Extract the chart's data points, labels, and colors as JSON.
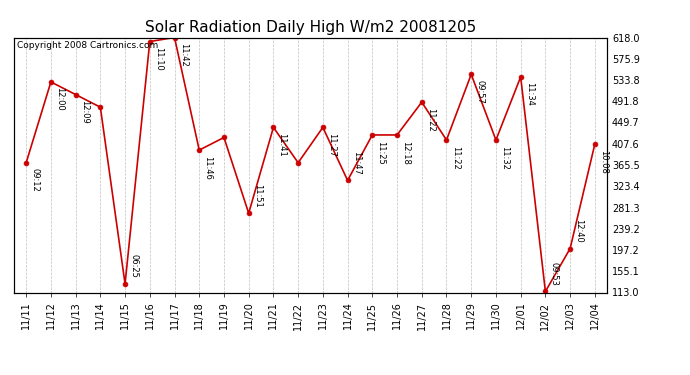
{
  "title": "Solar Radiation Daily High W/m2 20081205",
  "copyright": "Copyright 2008 Cartronics.com",
  "x_labels": [
    "11/11",
    "11/12",
    "11/13",
    "11/14",
    "11/15",
    "11/16",
    "11/17",
    "11/18",
    "11/19",
    "11/20",
    "11/21",
    "11/22",
    "11/23",
    "11/24",
    "11/25",
    "11/26",
    "11/27",
    "11/28",
    "11/29",
    "11/30",
    "12/01",
    "12/02",
    "12/03",
    "12/04"
  ],
  "y_vals": [
    370,
    530,
    505,
    480,
    130,
    610,
    618,
    395,
    420,
    270,
    440,
    370,
    440,
    335,
    425,
    425,
    490,
    415,
    545,
    415,
    540,
    115,
    200,
    407
  ],
  "time_labs": [
    "09:12",
    "12:00",
    "12:09",
    "",
    "06:25",
    "11:10",
    "11:42",
    "11:46",
    "",
    "11:51",
    "11:41",
    "",
    "11:27",
    "11:47",
    "11:25",
    "12:18",
    "11:22",
    "11:22",
    "09:57",
    "11:32",
    "11:34",
    "09:53",
    "12:40",
    "10:08"
  ],
  "y_min": 113.0,
  "y_max": 618.0,
  "y_ticks": [
    113.0,
    155.1,
    197.2,
    239.2,
    281.3,
    323.4,
    365.5,
    407.6,
    449.7,
    491.8,
    533.8,
    575.9,
    618.0
  ],
  "line_color": "#cc0000",
  "dot_color": "#cc0000",
  "bg_color": "#ffffff",
  "grid_color": "#b0b0b0",
  "title_fontsize": 11,
  "tick_fontsize": 7,
  "copyright_fontsize": 6.5,
  "label_fontsize": 6
}
